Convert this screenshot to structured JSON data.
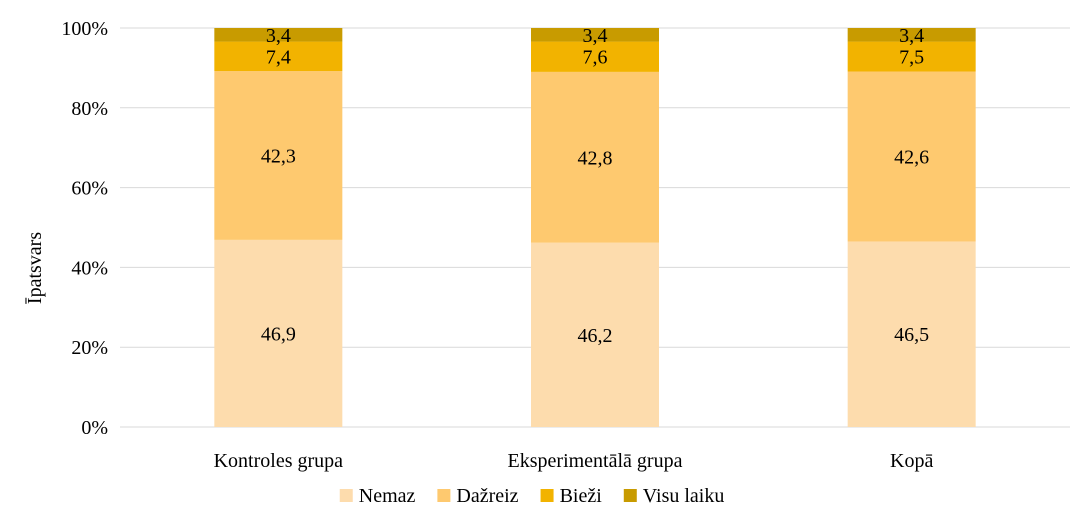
{
  "chart_data": {
    "type": "bar",
    "stacked": true,
    "title": "",
    "xlabel": "",
    "ylabel": "Īpatsvars",
    "ylim": [
      0,
      100
    ],
    "y_ticks": [
      "0%",
      "20%",
      "40%",
      "60%",
      "80%",
      "100%"
    ],
    "y_tick_values": [
      0,
      20,
      40,
      60,
      80,
      100
    ],
    "grid": true,
    "legend_position": "bottom",
    "categories": [
      "Kontroles grupa",
      "Eksperimentālā grupa",
      "Kopā"
    ],
    "series": [
      {
        "name": "Nemaz",
        "color": "#fddcad",
        "values": [
          46.9,
          46.2,
          46.5
        ],
        "labels": [
          "46,9",
          "46,2",
          "46,5"
        ]
      },
      {
        "name": "Dažreiz",
        "color": "#fec96f",
        "values": [
          42.3,
          42.8,
          42.6
        ],
        "labels": [
          "42,3",
          "42,8",
          "42,6"
        ]
      },
      {
        "name": "Bieži",
        "color": "#f2b300",
        "values": [
          7.4,
          7.6,
          7.5
        ],
        "labels": [
          "7,4",
          "7,6",
          "7,5"
        ]
      },
      {
        "name": "Visu laiku",
        "color": "#c89b00",
        "values": [
          3.4,
          3.4,
          3.4
        ],
        "labels": [
          "3,4",
          "3,4",
          "3,4"
        ]
      }
    ]
  }
}
